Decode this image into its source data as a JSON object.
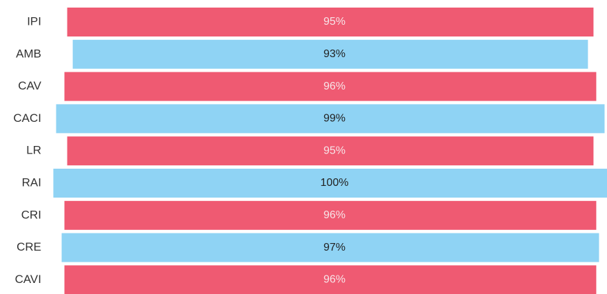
{
  "chart_data": {
    "type": "centered-bar",
    "categories": [
      "IPI",
      "AMB",
      "CAV",
      "CACI",
      "LR",
      "RAI",
      "CRI",
      "CRE",
      "CAVI"
    ],
    "values": [
      95,
      93,
      96,
      99,
      95,
      100,
      96,
      97,
      96
    ],
    "value_labels": [
      "95%",
      "93%",
      "96%",
      "99%",
      "95%",
      "100%",
      "96%",
      "97%",
      "96%"
    ],
    "colors": [
      "#ef5a72",
      "#8fd3f4",
      "#ef5a72",
      "#8fd3f4",
      "#ef5a72",
      "#8fd3f4",
      "#ef5a72",
      "#8fd3f4",
      "#ef5a72"
    ]
  }
}
